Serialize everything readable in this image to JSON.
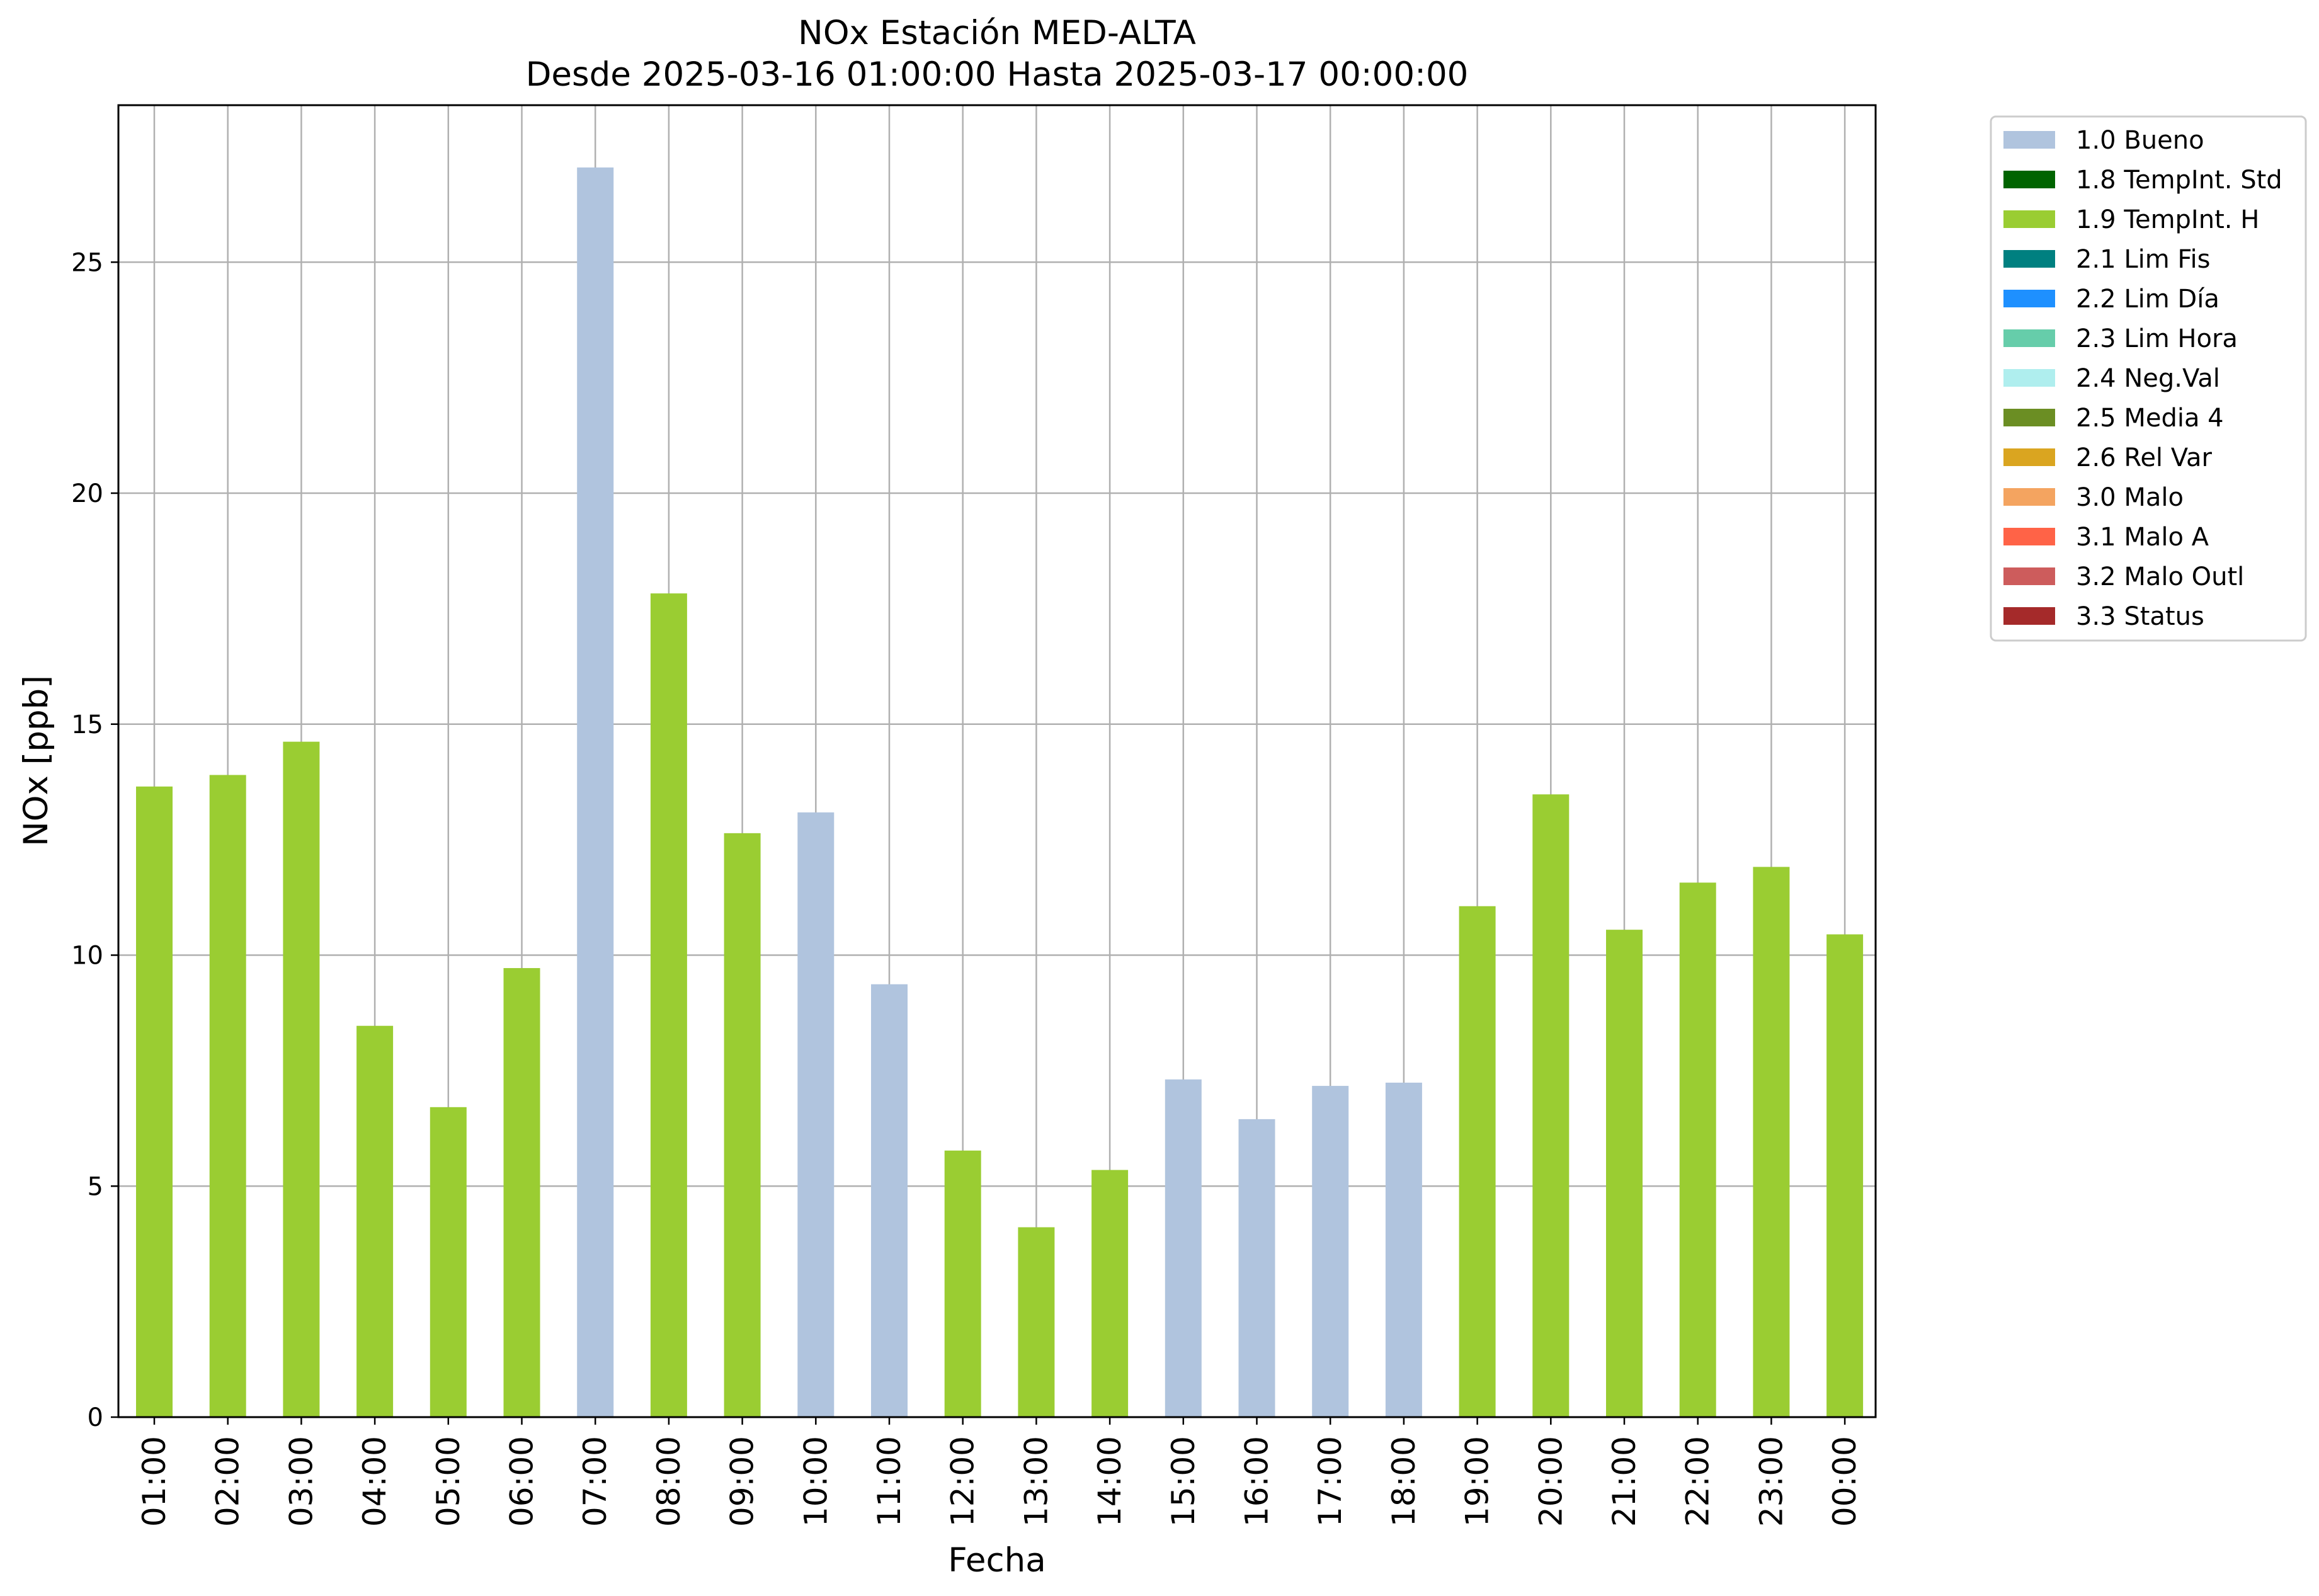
{
  "chart_data": {
    "type": "bar",
    "title": "NOx Estación MED-ALTA",
    "subtitle": "Desde 2025-03-16 01:00:00 Hasta 2025-03-17 00:00:00",
    "xlabel": "Fecha",
    "ylabel": "NOx [ppb]",
    "ylim": [
      0,
      28.4
    ],
    "yticks": [
      0,
      5,
      10,
      15,
      20,
      25
    ],
    "grid": true,
    "legend_position": "outside-top-right",
    "categories": [
      "01:00",
      "02:00",
      "03:00",
      "04:00",
      "05:00",
      "06:00",
      "07:00",
      "08:00",
      "09:00",
      "10:00",
      "11:00",
      "12:00",
      "13:00",
      "14:00",
      "15:00",
      "16:00",
      "17:00",
      "18:00",
      "19:00",
      "20:00",
      "21:00",
      "22:00",
      "23:00",
      "00:00"
    ],
    "values": [
      13.65,
      13.9,
      14.62,
      8.47,
      6.71,
      9.72,
      27.05,
      17.83,
      12.64,
      13.09,
      9.37,
      5.77,
      4.11,
      5.35,
      7.31,
      6.45,
      7.17,
      7.24,
      11.06,
      13.48,
      10.55,
      11.57,
      11.91,
      10.45
    ],
    "flags": [
      "1.9",
      "1.9",
      "1.9",
      "1.9",
      "1.9",
      "1.9",
      "1.0",
      "1.9",
      "1.9",
      "1.0",
      "1.0",
      "1.9",
      "1.9",
      "1.9",
      "1.0",
      "1.0",
      "1.0",
      "1.0",
      "1.9",
      "1.9",
      "1.9",
      "1.9",
      "1.9",
      "1.9"
    ],
    "legend": [
      {
        "code": "1.0",
        "label": "1.0 Bueno",
        "color": "#b0c4de"
      },
      {
        "code": "1.8",
        "label": "1.8 TempInt. Std",
        "color": "#006400"
      },
      {
        "code": "1.9",
        "label": "1.9 TempInt. H",
        "color": "#9acd32"
      },
      {
        "code": "2.1",
        "label": "2.1 Lim Fis",
        "color": "#008080"
      },
      {
        "code": "2.2",
        "label": "2.2 Lim Día",
        "color": "#1e90ff"
      },
      {
        "code": "2.3",
        "label": "2.3 Lim Hora",
        "color": "#66cdaa"
      },
      {
        "code": "2.4",
        "label": "2.4 Neg.Val",
        "color": "#afeeee"
      },
      {
        "code": "2.5",
        "label": "2.5 Media 4",
        "color": "#6b8e23"
      },
      {
        "code": "2.6",
        "label": "2.6 Rel Var",
        "color": "#daa520"
      },
      {
        "code": "3.0",
        "label": "3.0 Malo",
        "color": "#f4a460"
      },
      {
        "code": "3.1",
        "label": "3.1 Malo A",
        "color": "#ff6347"
      },
      {
        "code": "3.2",
        "label": "3.2 Malo Outl",
        "color": "#cd5c5c"
      },
      {
        "code": "3.3",
        "label": "3.3 Status",
        "color": "#a52a2a"
      }
    ]
  }
}
